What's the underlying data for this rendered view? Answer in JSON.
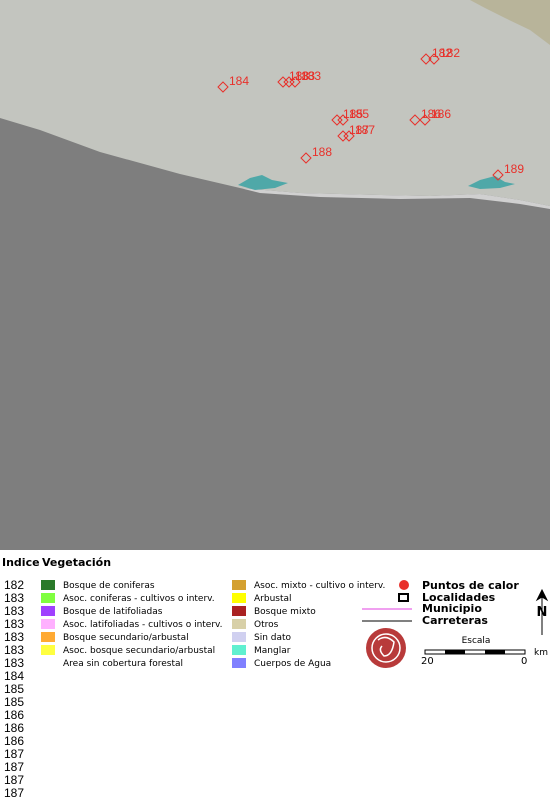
{
  "map": {
    "labels": [
      "182",
      "182",
      "184",
      "183",
      "183",
      "183",
      "185",
      "185",
      "186",
      "186",
      "187",
      "187",
      "188",
      "189"
    ]
  },
  "legend": {
    "index_title": "Indice",
    "vegetation_title": "Vegetación",
    "index": [
      "182",
      "183",
      "183",
      "183",
      "183",
      "183",
      "183",
      "184",
      "185",
      "185",
      "186",
      "186",
      "186",
      "187",
      "187",
      "187",
      "187"
    ],
    "vegetation": [
      {
        "name": "Bosque de coniferas",
        "color": "#2a7a2a"
      },
      {
        "name": "Asoc. coniferas - cultivos o interv.",
        "color": "#80ff40"
      },
      {
        "name": "Bosque de latifoliadas",
        "color": "#a040ff"
      },
      {
        "name": "Asoc. latifoliadas - cultivos o interv.",
        "color": "#ffb0ff"
      },
      {
        "name": "Bosque secundario/arbustal",
        "color": "#ffaa33"
      },
      {
        "name": "Asoc. bosque secundario/arbustal",
        "color": "#ffff40"
      },
      {
        "name": "Area sin cobertura forestal"
      },
      {
        "name": "Asoc. mixto - cultivo o interv.",
        "color": "#d4a030"
      },
      {
        "name": "Arbustal",
        "color": "#ffff00"
      },
      {
        "name": "Bosque mixto",
        "color": "#aa2222"
      },
      {
        "name": "Otros",
        "color": "#d8d0a8"
      },
      {
        "name": "Sin dato",
        "color": "#d0d0f0"
      },
      {
        "name": "Manglar",
        "color": "#60f0d0"
      },
      {
        "name": "Cuerpos de Agua",
        "color": "#8080ff"
      }
    ],
    "symbols": [
      "Puntos de calor",
      "Localidades",
      "Municipio",
      "Carreteras"
    ],
    "scale": {
      "title": "Escala",
      "start": "20",
      "end": "0",
      "unit": "km"
    },
    "north": "N"
  }
}
